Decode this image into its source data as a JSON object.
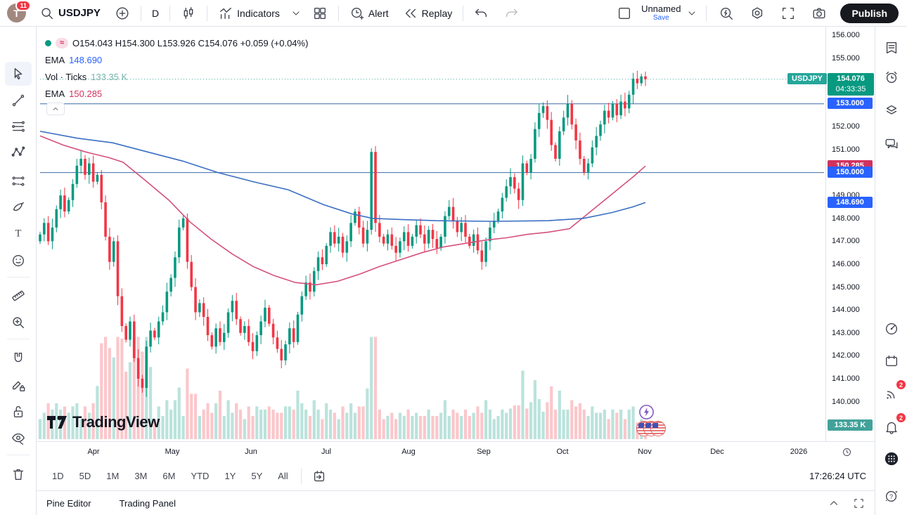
{
  "topbar": {
    "avatar_initial": "T",
    "avatar_badge": "11",
    "symbol": "USDJPY",
    "interval": "D",
    "indicators_label": "Indicators",
    "alert_label": "Alert",
    "replay_label": "Replay",
    "layout_name": "Unnamed",
    "save_label": "Save",
    "publish_label": "Publish"
  },
  "legend": {
    "delayed_chip": "≈",
    "ohlc_text": "O154.043  H154.300  L153.926  C154.076  +0.059 (+0.04%)",
    "ema_blue_label": "EMA",
    "ema_blue_value": "148.690",
    "vol_label": "Vol · Ticks",
    "vol_value": "133.35 K",
    "ema_pink_label": "EMA",
    "ema_pink_value": "150.285"
  },
  "price_axis": {
    "ticks": [
      {
        "price": 156.0,
        "label": "156.000"
      },
      {
        "price": 155.0,
        "label": "155.000"
      },
      {
        "price": 152.0,
        "label": "152.000"
      },
      {
        "price": 151.0,
        "label": "151.000"
      },
      {
        "price": 149.0,
        "label": "149.000"
      },
      {
        "price": 148.0,
        "label": "148.000"
      },
      {
        "price": 147.0,
        "label": "147.000"
      },
      {
        "price": 146.0,
        "label": "146.000"
      },
      {
        "price": 145.0,
        "label": "145.000"
      },
      {
        "price": 144.0,
        "label": "144.000"
      },
      {
        "price": 143.0,
        "label": "143.000"
      },
      {
        "price": 142.0,
        "label": "142.000"
      },
      {
        "price": 141.0,
        "label": "141.000"
      },
      {
        "price": 140.0,
        "label": "140.000"
      }
    ],
    "symbol_tag": "USDJPY",
    "last_price": "154.076",
    "countdown": "04:33:35",
    "line_labels": [
      {
        "text": "153.000",
        "price": 153.0,
        "color": "#2962ff"
      },
      {
        "text": "150.285",
        "price": 150.285,
        "color": "#d1325e"
      },
      {
        "text": "150.000",
        "price": 150.0,
        "color": "#2962ff"
      },
      {
        "text": "148.690",
        "price": 148.69,
        "color": "#2962ff"
      }
    ],
    "volume_label": "133.35 K",
    "volume_label_color": "#42a29a"
  },
  "time_axis": {
    "labels": [
      {
        "text": "Apr",
        "x": 133
      },
      {
        "text": "May",
        "x": 245
      },
      {
        "text": "Jun",
        "x": 357
      },
      {
        "text": "Jul",
        "x": 464
      },
      {
        "text": "Aug",
        "x": 581
      },
      {
        "text": "Sep",
        "x": 688
      },
      {
        "text": "Oct",
        "x": 800
      },
      {
        "text": "Nov",
        "x": 917
      },
      {
        "text": "Dec",
        "x": 1020
      },
      {
        "text": "2026",
        "x": 1136
      }
    ]
  },
  "range_toolbar": {
    "ranges": [
      "1D",
      "5D",
      "1M",
      "3M",
      "6M",
      "YTD",
      "1Y",
      "5Y",
      "All"
    ],
    "clock": "17:26:24 UTC"
  },
  "footer": {
    "pine_editor": "Pine Editor",
    "trading_panel": "Trading Panel"
  },
  "watermark": "TradingView",
  "badges": {
    "streams": "2",
    "notifications": "2"
  },
  "chart_data": {
    "type": "candlestick",
    "symbol": "USDJPY",
    "interval": "1D",
    "last": {
      "open": 154.043,
      "high": 154.3,
      "low": 153.926,
      "close": 154.076,
      "change": 0.059,
      "change_pct": 0.04
    },
    "y_range": [
      139.6,
      156.4
    ],
    "x_labels": [
      "Apr",
      "May",
      "Jun",
      "Jul",
      "Aug",
      "Sep",
      "Oct",
      "Nov",
      "Dec",
      "2026"
    ],
    "hlines": [
      153.0,
      150.0
    ],
    "last_price_line": 154.076,
    "volume_last": "133.35 K",
    "closes": [
      147.3,
      147.8,
      147.0,
      147.6,
      148.4,
      149.0,
      148.3,
      148.8,
      149.5,
      150.3,
      150.6,
      149.9,
      150.4,
      149.6,
      149.9,
      148.7,
      147.2,
      146.1,
      147.0,
      144.6,
      143.3,
      142.7,
      143.5,
      141.9,
      141.0,
      140.6,
      142.4,
      143.1,
      142.8,
      143.5,
      143.9,
      144.8,
      145.4,
      146.3,
      147.6,
      148.0,
      146.1,
      145.0,
      143.9,
      144.3,
      143.7,
      142.9,
      142.4,
      143.2,
      142.6,
      143.0,
      143.9,
      144.4,
      143.6,
      143.0,
      143.3,
      142.6,
      142.2,
      142.9,
      143.5,
      144.1,
      143.4,
      142.8,
      142.3,
      141.8,
      142.5,
      143.2,
      142.6,
      143.8,
      144.6,
      145.2,
      144.8,
      145.7,
      146.3,
      146.0,
      146.8,
      147.4,
      146.9,
      147.2,
      146.5,
      147.0,
      147.8,
      148.3,
      147.6,
      146.9,
      147.5,
      150.9,
      147.8,
      147.2,
      146.9,
      147.3,
      146.8,
      146.5,
      147.0,
      147.4,
      146.8,
      147.2,
      147.7,
      147.3,
      146.9,
      147.5,
      147.1,
      146.7,
      147.2,
      148.1,
      148.5,
      147.9,
      147.4,
      147.8,
      147.2,
      146.8,
      147.3,
      146.6,
      146.1,
      147.0,
      147.6,
      147.9,
      148.3,
      148.9,
      149.4,
      149.8,
      149.3,
      148.8,
      150.4,
      150.0,
      150.6,
      151.9,
      152.6,
      152.9,
      152.3,
      151.2,
      150.6,
      151.8,
      152.4,
      153.0,
      152.1,
      151.4,
      150.6,
      150.0,
      150.4,
      151.1,
      151.6,
      152.1,
      152.7,
      152.4,
      153.0,
      152.5,
      153.1,
      152.8,
      153.4,
      154.1,
      153.9,
      154.2,
      154.076
    ],
    "ema_blue": {
      "value": 148.69,
      "points": [
        [
          57,
          151.8
        ],
        [
          110,
          151.5
        ],
        [
          160,
          151.3
        ],
        [
          210,
          150.9
        ],
        [
          260,
          150.5
        ],
        [
          310,
          150.0
        ],
        [
          360,
          149.6
        ],
        [
          410,
          149.25
        ],
        [
          460,
          148.6
        ],
        [
          500,
          148.2
        ],
        [
          530,
          148.0
        ],
        [
          570,
          147.95
        ],
        [
          620,
          147.9
        ],
        [
          700,
          147.87
        ],
        [
          780,
          147.9
        ],
        [
          830,
          148.0
        ],
        [
          870,
          148.25
        ],
        [
          900,
          148.5
        ],
        [
          918,
          148.69
        ]
      ]
    },
    "ema_pink": {
      "value": 150.285,
      "points": [
        [
          57,
          151.6
        ],
        [
          90,
          151.2
        ],
        [
          122,
          150.9
        ],
        [
          155,
          150.65
        ],
        [
          175,
          150.45
        ],
        [
          205,
          149.7
        ],
        [
          240,
          148.8
        ],
        [
          270,
          147.85
        ],
        [
          300,
          147.1
        ],
        [
          330,
          146.45
        ],
        [
          360,
          145.9
        ],
        [
          390,
          145.5
        ],
        [
          420,
          145.2
        ],
        [
          450,
          145.1
        ],
        [
          480,
          145.25
        ],
        [
          510,
          145.55
        ],
        [
          540,
          145.9
        ],
        [
          570,
          146.2
        ],
        [
          600,
          146.5
        ],
        [
          630,
          146.75
        ],
        [
          660,
          146.9
        ],
        [
          690,
          147.05
        ],
        [
          720,
          147.15
        ],
        [
          750,
          147.3
        ],
        [
          780,
          147.4
        ],
        [
          810,
          147.55
        ],
        [
          840,
          148.3
        ],
        [
          870,
          149.05
        ],
        [
          900,
          149.8
        ],
        [
          918,
          150.285
        ]
      ]
    },
    "colors": {
      "up": "#089981",
      "down": "#f23645",
      "ema_blue": "#3a6fc4",
      "ema_pink": "#d4517c",
      "hline": "#3f6ca6",
      "vol_up": "rgba(8,153,129,0.28)",
      "vol_down": "rgba(242,54,69,0.28)"
    }
  }
}
